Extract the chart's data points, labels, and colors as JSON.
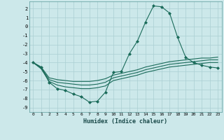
{
  "xlabel": "Humidex (Indice chaleur)",
  "background_color": "#cce8ea",
  "grid_color": "#b0d8da",
  "line_color": "#1a6b5a",
  "xlim": [
    -0.5,
    23.5
  ],
  "ylim": [
    -9.5,
    2.8
  ],
  "yticks": [
    2,
    1,
    0,
    -1,
    -2,
    -3,
    -4,
    -5,
    -6,
    -7,
    -8,
    -9
  ],
  "xticks": [
    0,
    1,
    2,
    3,
    4,
    5,
    6,
    7,
    8,
    9,
    10,
    11,
    12,
    13,
    14,
    15,
    16,
    17,
    18,
    19,
    20,
    21,
    22,
    23
  ],
  "series": [
    {
      "x": [
        0,
        1,
        2,
        3,
        4,
        5,
        6,
        7,
        8,
        9,
        10,
        11,
        12,
        13,
        14,
        15,
        16,
        17,
        18,
        19,
        20,
        21,
        22,
        23
      ],
      "y": [
        -4.0,
        -4.5,
        -6.2,
        -6.9,
        -7.1,
        -7.5,
        -7.8,
        -8.4,
        -8.3,
        -7.3,
        -5.1,
        -5.0,
        -3.0,
        -1.6,
        0.5,
        2.3,
        2.2,
        1.5,
        -1.2,
        -3.4,
        -4.0,
        -4.3,
        -4.5,
        -4.6
      ],
      "marker": "D",
      "markersize": 2.0,
      "lw": 0.8
    },
    {
      "x": [
        0,
        1,
        2,
        3,
        4,
        5,
        6,
        7,
        8,
        9,
        10,
        11,
        12,
        13,
        14,
        15,
        16,
        17,
        18,
        19,
        20,
        21,
        22,
        23
      ],
      "y": [
        -4.0,
        -4.5,
        -5.7,
        -5.9,
        -6.0,
        -6.1,
        -6.1,
        -6.1,
        -6.0,
        -5.8,
        -5.4,
        -5.2,
        -5.0,
        -4.8,
        -4.5,
        -4.3,
        -4.1,
        -3.9,
        -3.8,
        -3.7,
        -3.6,
        -3.5,
        -3.5,
        -3.4
      ],
      "marker": null,
      "lw": 0.8
    },
    {
      "x": [
        0,
        1,
        2,
        3,
        4,
        5,
        6,
        7,
        8,
        9,
        10,
        11,
        12,
        13,
        14,
        15,
        16,
        17,
        18,
        19,
        20,
        21,
        22,
        23
      ],
      "y": [
        -4.0,
        -4.6,
        -5.9,
        -6.2,
        -6.3,
        -6.4,
        -6.5,
        -6.5,
        -6.4,
        -6.2,
        -5.7,
        -5.5,
        -5.3,
        -5.1,
        -4.8,
        -4.6,
        -4.4,
        -4.2,
        -4.1,
        -4.0,
        -3.9,
        -3.8,
        -3.7,
        -3.7
      ],
      "marker": null,
      "lw": 0.8
    },
    {
      "x": [
        0,
        1,
        2,
        3,
        4,
        5,
        6,
        7,
        8,
        9,
        10,
        11,
        12,
        13,
        14,
        15,
        16,
        17,
        18,
        19,
        20,
        21,
        22,
        23
      ],
      "y": [
        -4.0,
        -4.7,
        -6.1,
        -6.5,
        -6.7,
        -6.8,
        -6.9,
        -6.9,
        -6.8,
        -6.6,
        -6.0,
        -5.8,
        -5.6,
        -5.4,
        -5.1,
        -4.9,
        -4.7,
        -4.5,
        -4.4,
        -4.3,
        -4.2,
        -4.1,
        -4.0,
        -4.0
      ],
      "marker": null,
      "lw": 0.8
    }
  ]
}
